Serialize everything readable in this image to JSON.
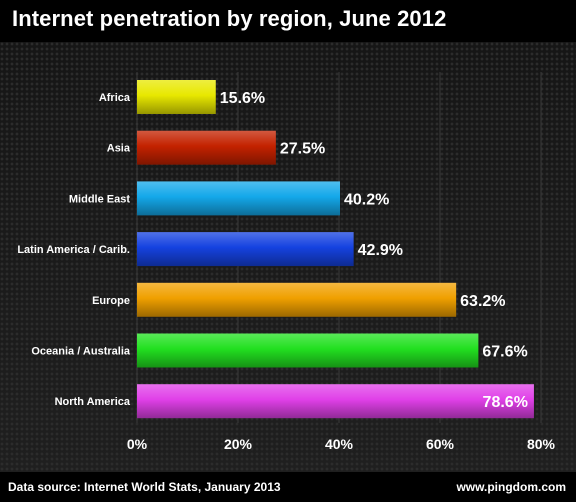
{
  "header": {
    "title": "Internet penetration by region, June 2012"
  },
  "footer": {
    "source": "Data source: Internet World Stats, January 2013",
    "site": "www.pingdom.com"
  },
  "chart_data": {
    "type": "bar",
    "orientation": "horizontal",
    "title": "Internet penetration by region, June 2012",
    "categories": [
      "Africa",
      "Asia",
      "Middle East",
      "Latin America / Carib.",
      "Europe",
      "Oceania / Australia",
      "North America"
    ],
    "values": [
      15.6,
      27.5,
      40.2,
      42.9,
      63.2,
      67.6,
      78.6
    ],
    "value_labels": [
      "15.6%",
      "27.5%",
      "40.2%",
      "42.9%",
      "63.2%",
      "67.6%",
      "78.6%"
    ],
    "colors": [
      "#e8e800",
      "#c42200",
      "#14a8ea",
      "#1542e0",
      "#f0a000",
      "#22e020",
      "#e040e8"
    ],
    "xlim": [
      0,
      80
    ],
    "xticks": [
      0,
      20,
      40,
      60,
      80
    ],
    "xtick_labels": [
      "0%",
      "20%",
      "40%",
      "60%",
      "80%"
    ],
    "grid": true
  }
}
